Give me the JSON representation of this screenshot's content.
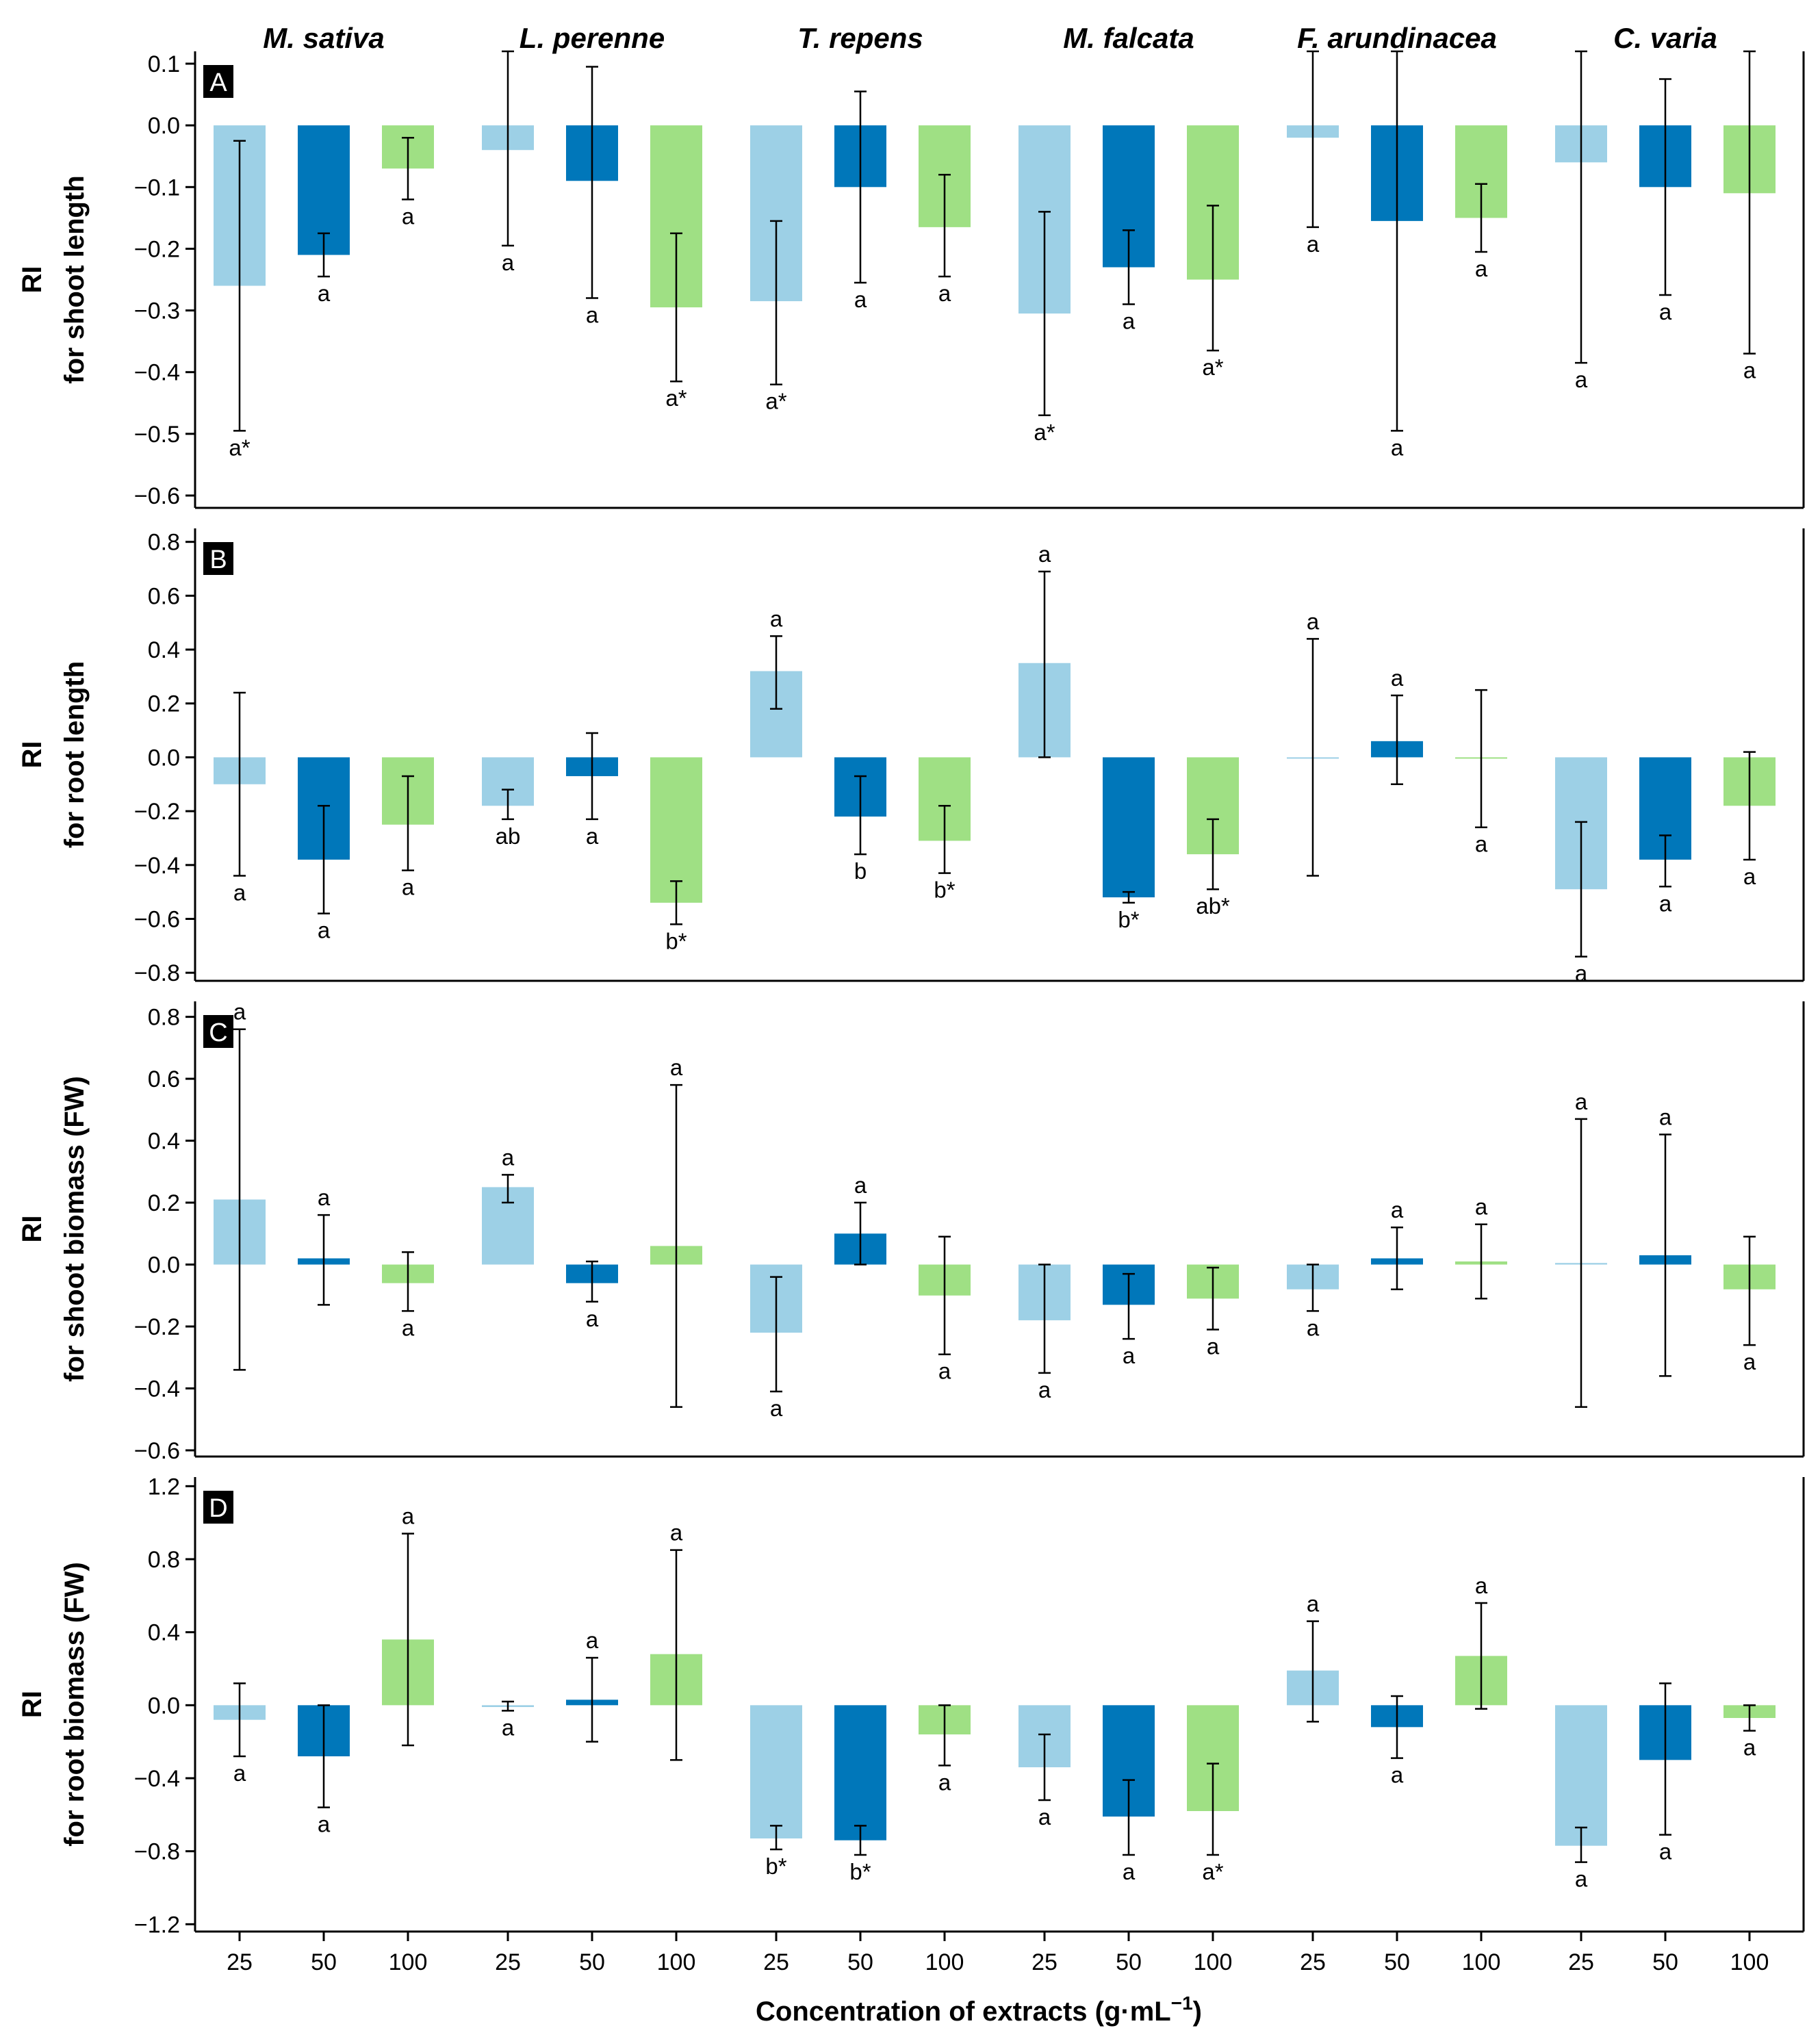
{
  "chart_data": {
    "type": "bar",
    "xlabel": "Concentration of extracts (g·mL",
    "xlabel_sup": "−1",
    "xlabel_close": ")",
    "species": [
      "M. sativa",
      "L. perenne",
      "T. repens",
      "M. falcata",
      "F. arundinacea",
      "C. varia"
    ],
    "concentrations": [
      "25",
      "50",
      "100"
    ],
    "series_colors": {
      "25": "#9dd0e6",
      "50": "#0077ba",
      "100": "#9fe084"
    },
    "panels": [
      {
        "label": "A",
        "ylabel_line1": "RI",
        "ylabel_line2": "for shoot length",
        "ylim": [
          -0.62,
          0.12
        ],
        "yticks": [
          0.1,
          0.0,
          -0.1,
          -0.2,
          -0.3,
          -0.4,
          -0.5,
          -0.6
        ],
        "ytick_labels": [
          "0.1",
          "0.0",
          "−0.1",
          "−0.2",
          "−0.3",
          "−0.4",
          "−0.5",
          "−0.6"
        ],
        "values": [
          [
            -0.26,
            -0.21,
            -0.07
          ],
          [
            -0.04,
            -0.09,
            -0.295
          ],
          [
            -0.285,
            -0.1,
            -0.165
          ],
          [
            -0.305,
            -0.23,
            -0.25
          ],
          [
            -0.02,
            -0.155,
            -0.15
          ],
          [
            -0.06,
            -0.1,
            -0.11
          ]
        ],
        "err_low": [
          [
            -0.495,
            -0.245,
            -0.12
          ],
          [
            -0.195,
            -0.28,
            -0.415
          ],
          [
            -0.42,
            -0.255,
            -0.245
          ],
          [
            -0.47,
            -0.29,
            -0.365
          ],
          [
            -0.165,
            -0.495,
            -0.205
          ],
          [
            -0.385,
            -0.275,
            -0.37
          ]
        ],
        "err_high": [
          [
            -0.025,
            -0.175,
            -0.02
          ],
          [
            0.12,
            0.095,
            -0.175
          ],
          [
            -0.155,
            0.055,
            -0.08
          ],
          [
            -0.14,
            -0.17,
            -0.13
          ],
          [
            0.12,
            0.12,
            -0.095
          ],
          [
            0.12,
            0.075,
            0.12
          ]
        ],
        "letters": [
          [
            "a*",
            "a",
            "a"
          ],
          [
            "a",
            "a",
            "a*"
          ],
          [
            "a*",
            "a",
            "a"
          ],
          [
            "a*",
            "a",
            "a*"
          ],
          [
            "a",
            "a",
            "a"
          ],
          [
            "a",
            "a",
            "a"
          ]
        ]
      },
      {
        "label": "B",
        "ylabel_line1": "RI",
        "ylabel_line2": "for root length",
        "ylim": [
          -0.83,
          0.85
        ],
        "yticks": [
          0.8,
          0.6,
          0.4,
          0.2,
          0.0,
          -0.2,
          -0.4,
          -0.6,
          -0.8
        ],
        "ytick_labels": [
          "0.8",
          "0.6",
          "0.4",
          "0.2",
          "0.0",
          "−0.2",
          "−0.4",
          "−0.6",
          "−0.8"
        ],
        "values": [
          [
            -0.1,
            -0.38,
            -0.25
          ],
          [
            -0.18,
            -0.07,
            -0.54
          ],
          [
            0.32,
            -0.22,
            -0.31
          ],
          [
            0.35,
            -0.52,
            -0.36
          ],
          [
            0.0,
            0.06,
            -0.005
          ],
          [
            -0.49,
            -0.38,
            -0.18
          ]
        ],
        "err_low": [
          [
            -0.44,
            -0.58,
            -0.42
          ],
          [
            -0.23,
            -0.23,
            -0.62
          ],
          [
            0.18,
            -0.36,
            -0.43
          ],
          [
            0.0,
            -0.54,
            -0.49
          ],
          [
            -0.44,
            -0.1,
            -0.26
          ],
          [
            -0.74,
            -0.48,
            -0.38
          ]
        ],
        "err_high": [
          [
            0.24,
            -0.18,
            -0.07
          ],
          [
            -0.12,
            0.09,
            -0.46
          ],
          [
            0.45,
            -0.07,
            -0.18
          ],
          [
            0.69,
            -0.5,
            -0.23
          ],
          [
            0.44,
            0.23,
            0.25
          ],
          [
            -0.24,
            -0.29,
            0.02
          ]
        ],
        "letters": [
          [
            "a",
            "a",
            "a"
          ],
          [
            "ab",
            "a",
            "b*"
          ],
          [
            "a",
            "b",
            "b*"
          ],
          [
            "a",
            "b*",
            "ab*"
          ],
          [
            "a",
            "a",
            "a"
          ],
          [
            "a",
            "a",
            "a"
          ]
        ]
      },
      {
        "label": "C",
        "ylabel_line1": "RI",
        "ylabel_line2": "for shoot biomass (FW)",
        "ylim": [
          -0.62,
          0.85
        ],
        "yticks": [
          0.8,
          0.6,
          0.4,
          0.2,
          0.0,
          -0.2,
          -0.4,
          -0.6
        ],
        "ytick_labels": [
          "0.8",
          "0.6",
          "0.4",
          "0.2",
          "0.0",
          "−0.2",
          "−0.4",
          "−0.6"
        ],
        "values": [
          [
            0.21,
            0.02,
            -0.06
          ],
          [
            0.25,
            -0.06,
            0.06
          ],
          [
            -0.22,
            0.1,
            -0.1
          ],
          [
            -0.18,
            -0.13,
            -0.11
          ],
          [
            -0.08,
            0.02,
            0.01
          ],
          [
            0.005,
            0.03,
            -0.08
          ]
        ],
        "err_low": [
          [
            -0.34,
            -0.13,
            -0.15
          ],
          [
            0.2,
            -0.12,
            -0.46
          ],
          [
            -0.41,
            0.0,
            -0.29
          ],
          [
            -0.35,
            -0.24,
            -0.21
          ],
          [
            -0.15,
            -0.08,
            -0.11
          ],
          [
            -0.46,
            -0.36,
            -0.26
          ]
        ],
        "err_high": [
          [
            0.76,
            0.16,
            0.04
          ],
          [
            0.29,
            0.01,
            0.58
          ],
          [
            -0.04,
            0.2,
            0.09
          ],
          [
            0.0,
            -0.03,
            -0.01
          ],
          [
            0.0,
            0.12,
            0.13
          ],
          [
            0.47,
            0.42,
            0.09
          ]
        ],
        "letters": [
          [
            "a",
            "a",
            "a"
          ],
          [
            "a",
            "a",
            "a"
          ],
          [
            "a",
            "a",
            "a"
          ],
          [
            "a",
            "a",
            "a"
          ],
          [
            "a",
            "a",
            "a"
          ],
          [
            "a",
            "a",
            "a"
          ]
        ]
      },
      {
        "label": "D",
        "ylabel_line1": "RI",
        "ylabel_line2": "for root biomass (FW)",
        "ylim": [
          -1.24,
          1.25
        ],
        "yticks": [
          1.2,
          0.8,
          0.4,
          0.0,
          -0.4,
          -0.8,
          -1.2
        ],
        "ytick_labels": [
          "1.2",
          "0.8",
          "0.4",
          "0.0",
          "−0.4",
          "−0.8",
          "−1.2"
        ],
        "values": [
          [
            -0.08,
            -0.28,
            0.36
          ],
          [
            -0.01,
            0.03,
            0.28
          ],
          [
            -0.73,
            -0.74,
            -0.16
          ],
          [
            -0.34,
            -0.61,
            -0.58
          ],
          [
            0.19,
            -0.12,
            0.27
          ],
          [
            -0.77,
            -0.3,
            -0.07
          ]
        ],
        "err_low": [
          [
            -0.28,
            -0.56,
            -0.22
          ],
          [
            -0.03,
            -0.2,
            -0.3
          ],
          [
            -0.79,
            -0.82,
            -0.33
          ],
          [
            -0.52,
            -0.82,
            -0.82
          ],
          [
            -0.09,
            -0.29,
            -0.02
          ],
          [
            -0.86,
            -0.71,
            -0.14
          ]
        ],
        "err_high": [
          [
            0.12,
            0.0,
            0.94
          ],
          [
            0.02,
            0.26,
            0.85
          ],
          [
            -0.66,
            -0.66,
            0.0
          ],
          [
            -0.16,
            -0.41,
            -0.32
          ],
          [
            0.46,
            0.05,
            0.56
          ],
          [
            -0.67,
            0.12,
            0.0
          ]
        ],
        "letters": [
          [
            "a",
            "a",
            "a"
          ],
          [
            "a",
            "a",
            "a"
          ],
          [
            "b*",
            "b*",
            "a"
          ],
          [
            "a",
            "a",
            "a*"
          ],
          [
            "a",
            "a",
            "a"
          ],
          [
            "a",
            "a",
            "a"
          ]
        ]
      }
    ]
  }
}
